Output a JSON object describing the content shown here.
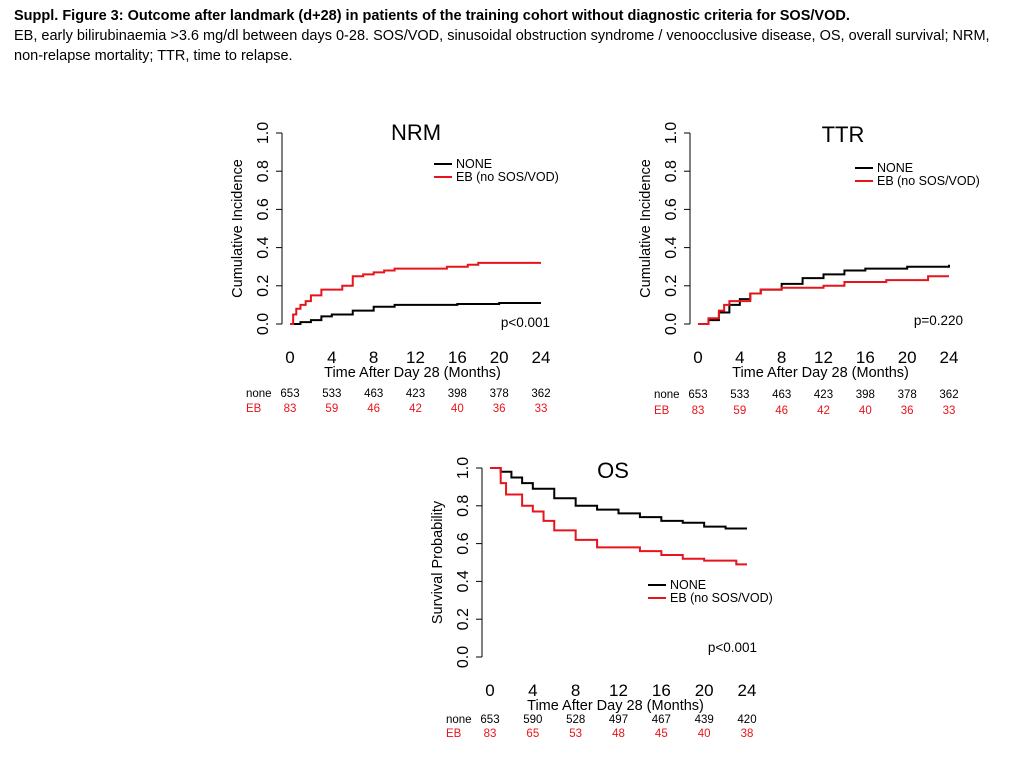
{
  "caption": {
    "title": "Suppl. Figure 3: Outcome after landmark (d+28) in patients of the training cohort without diagnostic criteria for SOS/VOD.",
    "body": "EB, early bilirubinaemia >3.6 mg/dl between days 0-28. SOS/VOD, sinusoidal obstruction syndrome / venoocclusive disease, OS, overall survival; NRM, non-relapse mortality; TTR, time to relapse."
  },
  "colors": {
    "none": "#000000",
    "eb": "#e8141b"
  },
  "chart_data": [
    {
      "id": "nrm",
      "type": "line",
      "title": "NRM",
      "ylabel": "Cumulative Incidence",
      "xlabel": "Time After Day 28 (Months)",
      "xlim": [
        0,
        24
      ],
      "ylim": [
        0,
        1
      ],
      "xticks": [
        "0",
        "4",
        "8",
        "12",
        "16",
        "20",
        "24"
      ],
      "yticks": [
        "0.0",
        "0.2",
        "0.4",
        "0.6",
        "0.8",
        "1.0"
      ],
      "legend": [
        "NONE",
        "EB (no SOS/VOD)"
      ],
      "pvalue": "p<0.001",
      "series": [
        {
          "name": "NONE",
          "x": [
            0,
            1,
            2,
            3,
            4,
            6,
            8,
            10,
            12,
            16,
            20,
            24
          ],
          "y": [
            0,
            0.01,
            0.02,
            0.04,
            0.05,
            0.07,
            0.09,
            0.1,
            0.1,
            0.105,
            0.11,
            0.11
          ]
        },
        {
          "name": "EB (no SOS/VOD)",
          "x": [
            0,
            0.3,
            0.6,
            1,
            1.5,
            2,
            3,
            5,
            6,
            7,
            8,
            9,
            10,
            12,
            15,
            17,
            18,
            24
          ],
          "y": [
            0,
            0.05,
            0.08,
            0.1,
            0.12,
            0.15,
            0.18,
            0.2,
            0.25,
            0.26,
            0.27,
            0.28,
            0.29,
            0.29,
            0.3,
            0.31,
            0.32,
            0.32
          ]
        }
      ],
      "risk_table": {
        "rows": [
          {
            "label": "none",
            "values": [
              "653",
              "533",
              "463",
              "423",
              "398",
              "378",
              "362"
            ]
          },
          {
            "label": "EB",
            "values": [
              "83",
              "59",
              "46",
              "42",
              "40",
              "36",
              "33"
            ]
          }
        ]
      }
    },
    {
      "id": "ttr",
      "type": "line",
      "title": "TTR",
      "ylabel": "Cumulative Incidence",
      "xlabel": "Time After Day 28 (Months)",
      "xlim": [
        0,
        24
      ],
      "ylim": [
        0,
        1
      ],
      "xticks": [
        "0",
        "4",
        "8",
        "12",
        "16",
        "20",
        "24"
      ],
      "yticks": [
        "0.0",
        "0.2",
        "0.4",
        "0.6",
        "0.8",
        "1.0"
      ],
      "legend": [
        "NONE",
        "EB (no SOS/VOD)"
      ],
      "pvalue": "p=0.220",
      "series": [
        {
          "name": "NONE",
          "x": [
            0,
            1,
            2,
            3,
            4,
            5,
            6,
            8,
            10,
            12,
            14,
            16,
            20,
            24
          ],
          "y": [
            0,
            0.02,
            0.06,
            0.1,
            0.13,
            0.16,
            0.18,
            0.21,
            0.24,
            0.26,
            0.28,
            0.29,
            0.3,
            0.31
          ]
        },
        {
          "name": "EB (no SOS/VOD)",
          "x": [
            0,
            1,
            2,
            2.5,
            3,
            5,
            6,
            8,
            12,
            14,
            18,
            20,
            22,
            24
          ],
          "y": [
            0,
            0.03,
            0.07,
            0.1,
            0.12,
            0.16,
            0.18,
            0.19,
            0.2,
            0.22,
            0.23,
            0.23,
            0.25,
            0.25
          ]
        }
      ],
      "risk_table": {
        "rows": [
          {
            "label": "none",
            "values": [
              "653",
              "533",
              "463",
              "423",
              "398",
              "378",
              "362"
            ]
          },
          {
            "label": "EB",
            "values": [
              "83",
              "59",
              "46",
              "42",
              "40",
              "36",
              "33"
            ]
          }
        ]
      }
    },
    {
      "id": "os",
      "type": "line",
      "title": "OS",
      "ylabel": "Survival Probability",
      "xlabel": "Time After Day 28 (Months)",
      "xlim": [
        0,
        24
      ],
      "ylim": [
        0,
        1
      ],
      "xticks": [
        "0",
        "4",
        "8",
        "12",
        "16",
        "20",
        "24"
      ],
      "yticks": [
        "0.0",
        "0.2",
        "0.4",
        "0.6",
        "0.8",
        "1.0"
      ],
      "legend": [
        "NONE",
        "EB (no SOS/VOD)"
      ],
      "pvalue": "p<0.001",
      "series": [
        {
          "name": "NONE",
          "x": [
            0,
            1,
            2,
            3,
            4,
            6,
            8,
            10,
            12,
            14,
            16,
            18,
            20,
            22,
            24
          ],
          "y": [
            1.0,
            0.98,
            0.95,
            0.92,
            0.89,
            0.84,
            0.8,
            0.78,
            0.76,
            0.74,
            0.72,
            0.71,
            0.69,
            0.68,
            0.68
          ]
        },
        {
          "name": "EB (no SOS/VOD)",
          "x": [
            0,
            1,
            1.5,
            3,
            4,
            5,
            6,
            8,
            10,
            14,
            16,
            18,
            20,
            22,
            23,
            24
          ],
          "y": [
            1.0,
            0.92,
            0.86,
            0.8,
            0.77,
            0.72,
            0.67,
            0.62,
            0.58,
            0.56,
            0.54,
            0.52,
            0.51,
            0.51,
            0.49,
            0.49
          ]
        }
      ],
      "risk_table": {
        "rows": [
          {
            "label": "none",
            "values": [
              "653",
              "590",
              "528",
              "497",
              "467",
              "439",
              "420"
            ]
          },
          {
            "label": "EB",
            "values": [
              "83",
              "65",
              "53",
              "48",
              "45",
              "40",
              "38"
            ]
          }
        ]
      }
    }
  ]
}
